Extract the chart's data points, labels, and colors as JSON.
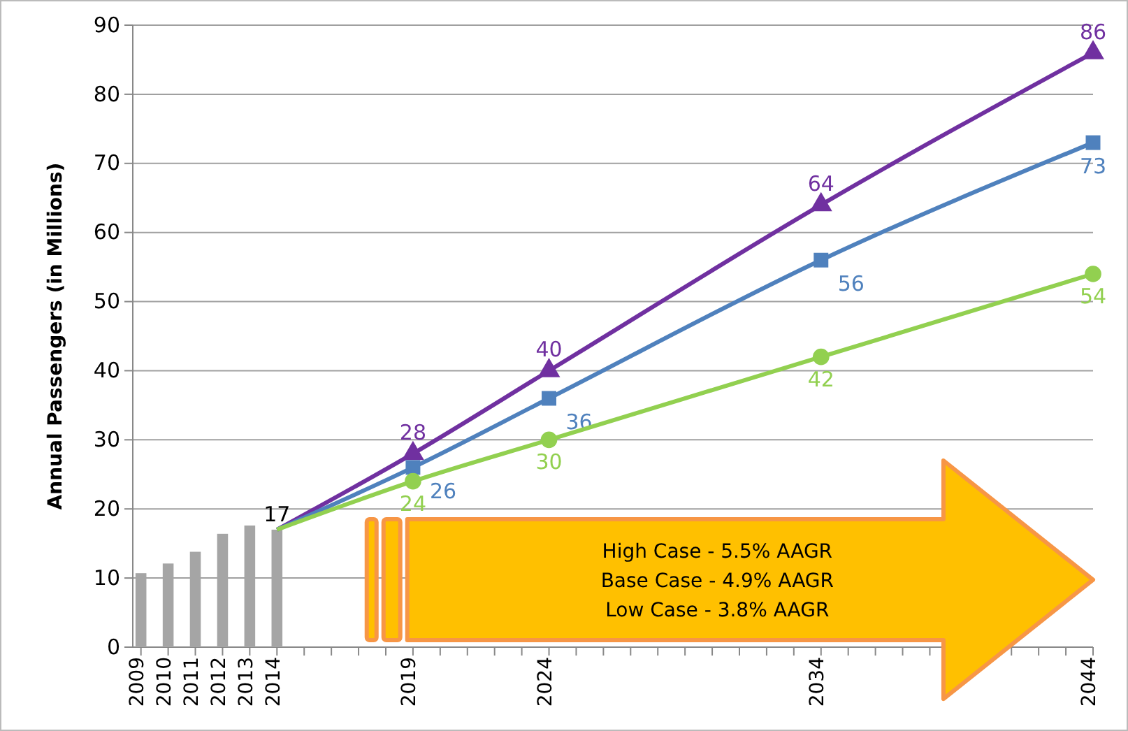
{
  "chart_data": {
    "type": "line",
    "ylabel": "Annual Passengers (in Millions)",
    "xlim": [
      2008.7,
      2044
    ],
    "ylim": [
      0,
      90
    ],
    "yticks": [
      0,
      10,
      20,
      30,
      40,
      50,
      60,
      70,
      80,
      90
    ],
    "xticks": [
      2009,
      2010,
      2011,
      2012,
      2013,
      2014,
      {
        "value": 2015,
        "label": null
      },
      {
        "value": 2016,
        "label": null
      },
      {
        "value": 2017,
        "label": null
      },
      {
        "value": 2018,
        "label": null
      },
      2019,
      {
        "value": 2020,
        "label": null
      },
      {
        "value": 2021,
        "label": null
      },
      {
        "value": 2022,
        "label": null
      },
      {
        "value": 2023,
        "label": null
      },
      2024,
      {
        "value": 2025,
        "label": null
      },
      {
        "value": 2026,
        "label": null
      },
      {
        "value": 2027,
        "label": null
      },
      {
        "value": 2028,
        "label": null
      },
      {
        "value": 2029,
        "label": null
      },
      {
        "value": 2030,
        "label": null
      },
      {
        "value": 2031,
        "label": null
      },
      {
        "value": 2032,
        "label": null
      },
      {
        "value": 2033,
        "label": null
      },
      2034,
      {
        "value": 2035,
        "label": null
      },
      {
        "value": 2036,
        "label": null
      },
      {
        "value": 2037,
        "label": null
      },
      {
        "value": 2038,
        "label": null
      },
      {
        "value": 2039,
        "label": null
      },
      {
        "value": 2040,
        "label": null
      },
      {
        "value": 2041,
        "label": null
      },
      {
        "value": 2042,
        "label": null
      },
      {
        "value": 2043,
        "label": null
      },
      2044
    ],
    "grid": "y",
    "series": [
      {
        "type": "bar",
        "color": "#a5a5a5",
        "x": [
          2009,
          2010,
          2011,
          2012,
          2013,
          2014
        ],
        "values": [
          10.7,
          12.1,
          13.8,
          16.4,
          17.6,
          17
        ],
        "value_labels": [
          null,
          null,
          null,
          null,
          null,
          "17"
        ]
      },
      {
        "color": "#7030a0",
        "marker": "triangle",
        "x": [
          2014,
          2019,
          2024,
          2034,
          2044
        ],
        "values": [
          17,
          28,
          40,
          64,
          86
        ],
        "value_labels": [
          null,
          "28",
          "40",
          "64",
          "86"
        ]
      },
      {
        "color": "#4f81bd",
        "marker": "square",
        "x": [
          2014,
          2019,
          2024,
          2034,
          2044
        ],
        "values": [
          17,
          26,
          36,
          56,
          73
        ],
        "value_labels": [
          null,
          "26",
          "36",
          "56",
          "73"
        ]
      },
      {
        "color": "#92d050",
        "marker": "circle",
        "x": [
          2014,
          2019,
          2024,
          2034,
          2044
        ],
        "values": [
          17,
          24,
          30,
          42,
          54
        ],
        "value_labels": [
          null,
          "24",
          "30",
          "42",
          "54"
        ]
      }
    ],
    "annotations": [
      "High Case - 5.5% AAGR",
      "Base Case - 4.9% AAGR",
      "Low Case - 3.8% AAGR"
    ]
  }
}
